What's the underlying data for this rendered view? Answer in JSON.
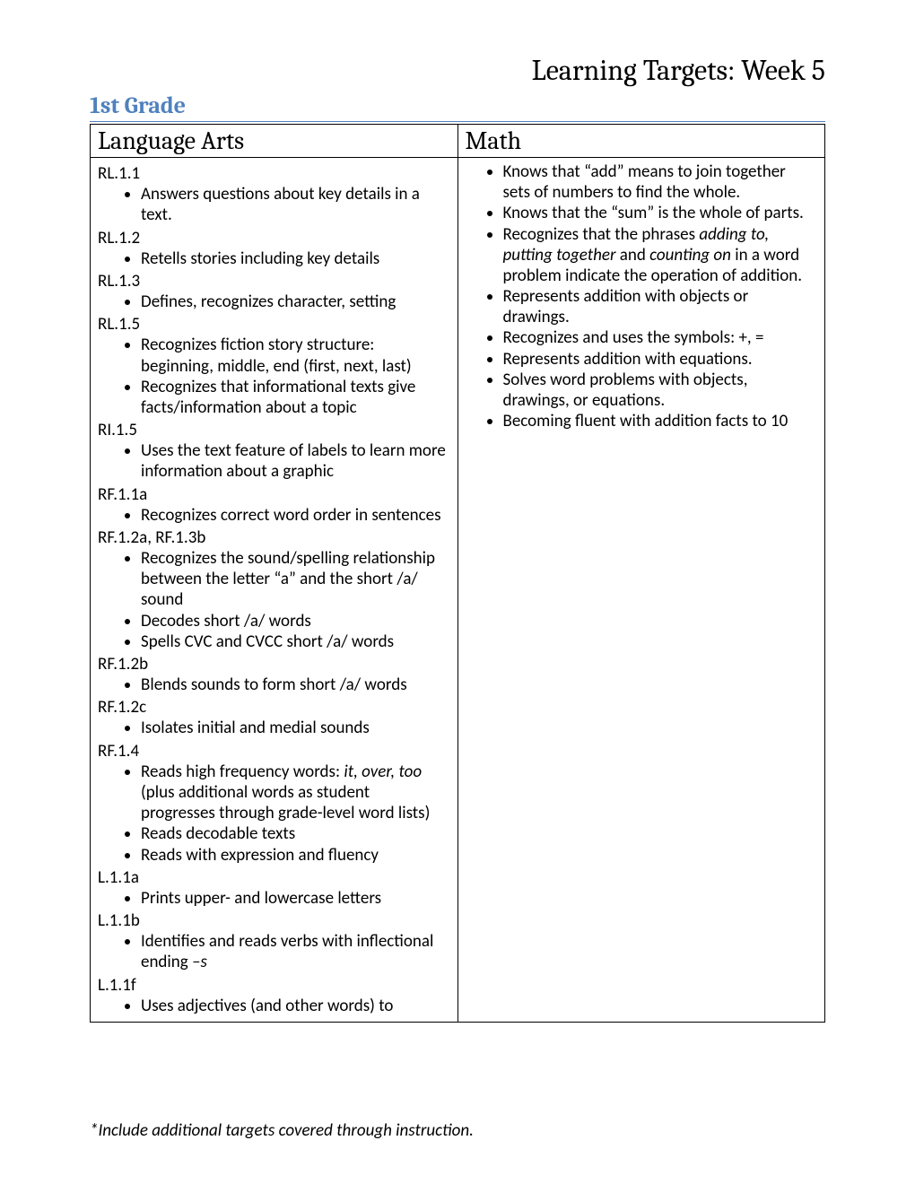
{
  "doc_title": "Learning Targets: Week 5",
  "grade_title": "1st Grade",
  "columns": {
    "left_header": "Language Arts",
    "right_header": "Math"
  },
  "language_arts": [
    {
      "code": "RL.1.1",
      "items": [
        "Answers questions about key details in a text."
      ]
    },
    {
      "code": "RL.1.2",
      "items": [
        "Retells stories including key details"
      ]
    },
    {
      "code": "RL.1.3",
      "items": [
        "Defines, recognizes character, setting"
      ]
    },
    {
      "code": "RL.1.5",
      "items": [
        "Recognizes fiction story structure: beginning, middle, end (first, next, last)",
        "Recognizes that informational texts give facts/information about a topic"
      ]
    },
    {
      "code": "RI.1.5",
      "items": [
        "Uses the text feature of labels to learn more information about a graphic"
      ]
    },
    {
      "code": "RF.1.1a",
      "items": [
        "Recognizes correct word order in sentences"
      ]
    },
    {
      "code": "RF.1.2a, RF.1.3b",
      "items": [
        "Recognizes the sound/spelling relationship between the letter “a” and the short /a/ sound",
        "Decodes short /a/ words",
        "Spells CVC and CVCC short /a/ words"
      ]
    },
    {
      "code": "RF.1.2b",
      "items": [
        "Blends sounds to form short /a/ words"
      ]
    },
    {
      "code": "RF.1.2c",
      "items": [
        "Isolates initial and medial sounds"
      ]
    },
    {
      "code": "RF.1.4",
      "items": [
        {
          "html": "Reads high frequency words: <em>it, over, too</em> (plus additional words as student progresses through grade-level word lists)"
        },
        "Reads decodable texts",
        "Reads with expression and fluency"
      ]
    },
    {
      "code": "L.1.1a",
      "items": [
        "Prints upper- and lowercase letters"
      ]
    },
    {
      "code": "L.1.1b",
      "items": [
        {
          "html": "Identifies and reads verbs with inflectional ending <em>–s</em>"
        }
      ]
    },
    {
      "code": "L.1.1f",
      "items": [
        "Uses adjectives (and other words) to"
      ]
    }
  ],
  "math": [
    "Knows that “add” means to join together sets of numbers to find the whole.",
    "Knows that the “sum” is the whole of parts.",
    {
      "html": "Recognizes that the phrases <em>adding to, putting together</em> and <em>counting on</em> in a word problem indicate the operation of addition."
    },
    "Represents addition with objects or drawings.",
    "Recognizes and uses the symbols: +, =",
    "Represents addition with equations.",
    "Solves word problems with objects, drawings, or equations.",
    "Becoming fluent with addition facts to 10"
  ],
  "footnote": "*Include additional targets covered through instruction.",
  "style": {
    "page_bg": "#ffffff",
    "text_color": "#000000",
    "accent_color": "#4f81bd",
    "border_color": "#000000",
    "doc_title_fontsize": 32,
    "grade_title_fontsize": 26,
    "header_fontsize": 28,
    "body_fontsize": 19,
    "line_height": 1.22,
    "font_body": "Calibri",
    "font_heading": "Cambria"
  }
}
